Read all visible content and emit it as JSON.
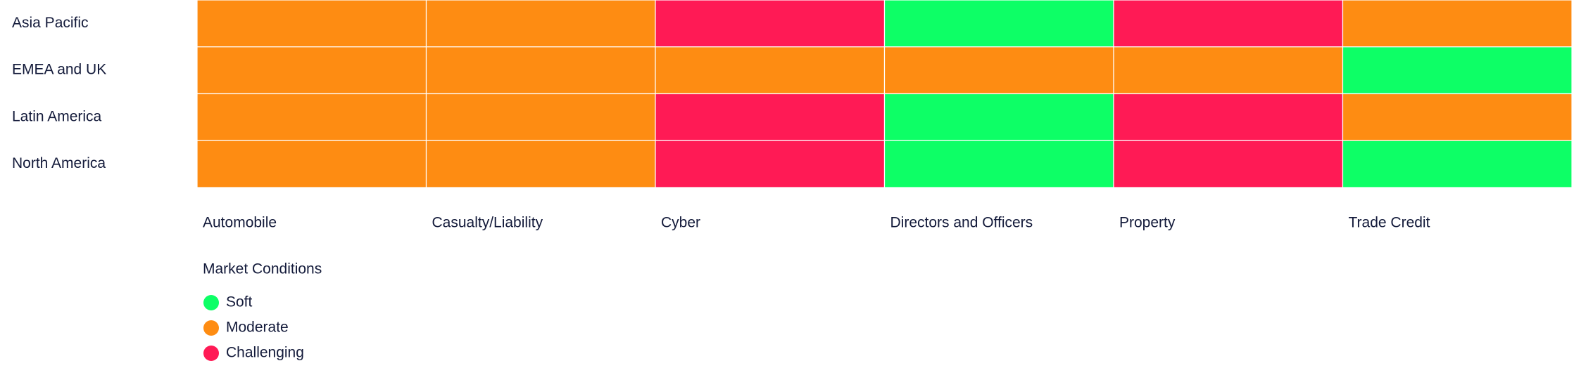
{
  "chart_data": {
    "type": "heatmap",
    "rows": [
      "Asia Pacific",
      "EMEA and UK",
      "Latin America",
      "North America"
    ],
    "columns": [
      "Automobile",
      "Casualty/Liability",
      "Cyber",
      "Directors and Officers",
      "Property",
      "Trade Credit"
    ],
    "values": [
      [
        "Moderate",
        "Moderate",
        "Challenging",
        "Soft",
        "Challenging",
        "Moderate"
      ],
      [
        "Moderate",
        "Moderate",
        "Moderate",
        "Moderate",
        "Moderate",
        "Soft"
      ],
      [
        "Moderate",
        "Moderate",
        "Challenging",
        "Soft",
        "Challenging",
        "Moderate"
      ],
      [
        "Moderate",
        "Moderate",
        "Challenging",
        "Soft",
        "Challenging",
        "Soft"
      ]
    ],
    "legend_title": "Market Conditions",
    "legend": [
      {
        "name": "Soft",
        "color": "#0dff66"
      },
      {
        "name": "Moderate",
        "color": "#fe8c12"
      },
      {
        "name": "Challenging",
        "color": "#ff1a55"
      }
    ]
  }
}
